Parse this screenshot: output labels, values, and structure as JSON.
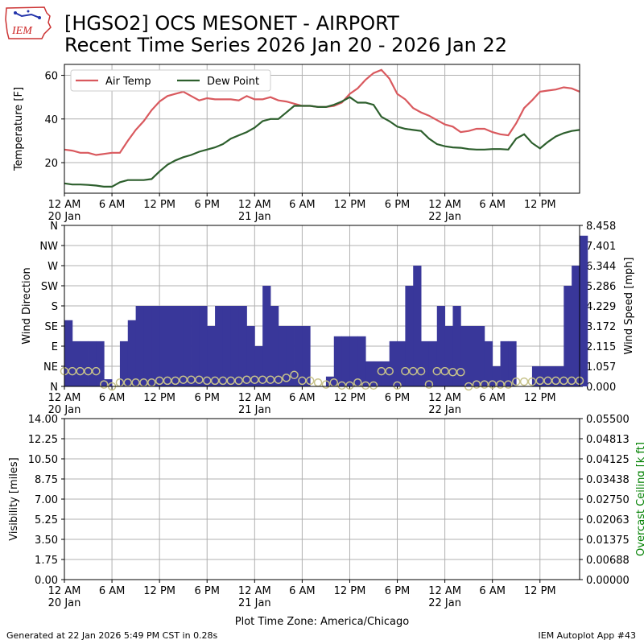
{
  "header": {
    "title_line1": "[HGSO2] OCS MESONET - AIRPORT",
    "title_line2": "Recent Time Series 2026 Jan 20 - 2026 Jan 22",
    "logo_text": "IEM"
  },
  "footer": {
    "left": "Generated at 22 Jan 2026 5:49 PM CST in 0.28s",
    "right": "IEM Autoplot App #43"
  },
  "colors": {
    "air_temp": "#d9595e",
    "dew_point": "#2d5f2d",
    "wind_bar": "#39379a",
    "wind_speed_marker": "#c7c28a",
    "ceiling_axis": "#008000",
    "grid": "#b0b0b0"
  },
  "chart_data": [
    {
      "type": "line",
      "ylabel": "Temperature [F]",
      "xlim": [
        0,
        65
      ],
      "ylim": [
        6,
        65
      ],
      "yticks": [
        20,
        40,
        60
      ],
      "xtick_hours": [
        0,
        6,
        12,
        18,
        24,
        30,
        36,
        42,
        48,
        54,
        60
      ],
      "xtick_labels": [
        "12 AM",
        "6 AM",
        "12 PM",
        "6 PM",
        "12 AM",
        "6 AM",
        "12 PM",
        "6 PM",
        "12 AM",
        "6 AM",
        "12 PM"
      ],
      "xtick_sublabels": {
        "0": "20 Jan",
        "24": "21 Jan",
        "48": "22 Jan"
      },
      "legend": "upper left",
      "series": [
        {
          "name": "Air Temp",
          "x": [
            0,
            1,
            2,
            3,
            4,
            5,
            6,
            7,
            8,
            9,
            10,
            11,
            12,
            13,
            14,
            15,
            16,
            17,
            18,
            19,
            20,
            21,
            22,
            23,
            24,
            25,
            26,
            27,
            28,
            29,
            30,
            31,
            32,
            33,
            34,
            35,
            36,
            37,
            38,
            39,
            40,
            41,
            42,
            43,
            44,
            45,
            46,
            47,
            48,
            49,
            50,
            51,
            52,
            53,
            54,
            55,
            56,
            57,
            58,
            59,
            60,
            61,
            62,
            63,
            64,
            65
          ],
          "y": [
            26,
            25.5,
            24.5,
            24.5,
            23.5,
            24,
            24.5,
            24.5,
            30,
            35,
            39,
            44,
            48,
            50.5,
            51.5,
            52.5,
            50.5,
            48.5,
            49.5,
            49,
            49,
            49,
            48.5,
            50.5,
            49,
            49,
            50,
            48.5,
            48,
            47,
            46,
            46,
            45.5,
            45.5,
            46,
            47.5,
            51.5,
            54,
            58,
            61,
            62.5,
            58.5,
            51.5,
            49,
            45,
            43,
            41.5,
            39.5,
            37.5,
            36.5,
            34,
            34.5,
            35.5,
            35.5,
            34,
            33,
            32.5,
            38,
            45,
            48.5,
            52.5,
            53,
            53.5,
            54.5,
            54,
            52.5
          ]
        },
        {
          "name": "Dew Point",
          "x": [
            0,
            1,
            2,
            3,
            4,
            5,
            6,
            7,
            8,
            9,
            10,
            11,
            12,
            13,
            14,
            15,
            16,
            17,
            18,
            19,
            20,
            21,
            22,
            23,
            24,
            25,
            26,
            27,
            28,
            29,
            30,
            31,
            32,
            33,
            34,
            35,
            36,
            37,
            38,
            39,
            40,
            41,
            42,
            43,
            44,
            45,
            46,
            47,
            48,
            49,
            50,
            51,
            52,
            53,
            54,
            55,
            56,
            57,
            58,
            59,
            60,
            61,
            62,
            63,
            64,
            65
          ],
          "y": [
            10.5,
            10,
            10,
            9.8,
            9.5,
            9,
            9,
            11,
            12,
            12,
            12,
            12.5,
            16,
            19,
            21,
            22.5,
            23.5,
            25,
            26,
            27,
            28.5,
            31,
            32.5,
            34,
            36,
            39,
            40,
            40,
            43,
            46,
            46,
            46,
            45.5,
            45.5,
            46.5,
            48,
            50,
            47.5,
            47.5,
            46.5,
            41,
            39,
            36.5,
            35.5,
            35,
            34.5,
            31,
            28.5,
            27.5,
            27,
            26.8,
            26.2,
            26,
            26,
            26.2,
            26.2,
            26,
            31,
            33,
            29,
            26.5,
            29.5,
            32,
            33.5,
            34.5,
            35
          ]
        }
      ]
    },
    {
      "type": "bar",
      "ylabel": "Wind Direction",
      "y2label": "Wind Speed [mph]",
      "xlim": [
        0,
        65
      ],
      "ylim": [
        0,
        360
      ],
      "yticks": [
        0,
        45,
        90,
        135,
        180,
        225,
        270,
        315,
        360
      ],
      "ytick_labels": [
        "N",
        "NE",
        "E",
        "SE",
        "S",
        "SW",
        "W",
        "NW",
        "N"
      ],
      "y2lim": [
        0,
        8.458
      ],
      "y2ticks": [
        "0.000",
        "1.057",
        "2.115",
        "3.172",
        "4.229",
        "5.286",
        "6.344",
        "7.401",
        "8.458"
      ],
      "xtick_hours": [
        0,
        6,
        12,
        18,
        24,
        30,
        36,
        42,
        48,
        54,
        60
      ],
      "xtick_labels": [
        "12 AM",
        "6 AM",
        "12 PM",
        "6 PM",
        "12 AM",
        "6 AM",
        "12 PM",
        "6 PM",
        "12 AM",
        "6 AM",
        "12 PM"
      ],
      "xtick_sublabels": {
        "0": "20 Jan",
        "24": "21 Jan",
        "48": "22 Jan"
      },
      "direction": [
        148,
        101,
        101,
        101,
        101,
        16,
        0,
        101,
        148,
        180,
        180,
        180,
        180,
        180,
        180,
        180,
        180,
        180,
        135,
        180,
        180,
        180,
        180,
        135,
        90,
        225,
        180,
        135,
        135,
        135,
        135,
        0,
        0,
        22,
        112,
        112,
        112,
        112,
        56,
        56,
        56,
        101,
        101,
        225,
        270,
        101,
        101,
        180,
        135,
        180,
        135,
        135,
        135,
        101,
        45,
        101,
        101,
        0,
        0,
        45,
        45,
        45,
        45,
        225,
        270,
        337,
        360,
        225,
        180,
        135,
        135,
        135,
        135
      ],
      "direction_x": [
        0.5,
        1,
        2,
        3,
        4,
        5,
        6,
        7,
        8,
        9,
        10,
        11,
        12,
        13,
        14,
        15,
        16,
        17,
        18,
        19,
        20,
        21,
        22,
        23,
        24,
        25,
        26,
        27,
        28,
        29,
        30,
        31,
        32,
        33,
        34,
        35,
        36,
        37,
        38,
        39,
        40,
        41,
        42,
        43,
        44,
        45,
        46,
        47,
        48,
        49,
        50,
        51,
        52,
        53,
        54,
        55,
        56,
        57,
        58,
        59,
        60,
        61,
        62,
        63,
        64,
        65,
        65,
        65,
        65,
        65,
        65,
        65,
        65
      ],
      "speed_x": [
        0,
        1,
        2,
        3,
        4,
        5,
        6,
        7,
        8,
        9,
        10,
        11,
        12,
        13,
        14,
        15,
        16,
        17,
        18,
        19,
        20,
        21,
        22,
        23,
        24,
        25,
        26,
        27,
        28,
        29,
        30,
        31,
        32,
        33,
        34,
        35,
        36,
        37,
        38,
        39,
        40,
        41,
        42,
        43,
        44,
        45,
        46,
        47,
        48,
        49,
        50,
        51,
        52,
        53,
        54,
        55,
        56,
        57,
        58,
        59,
        60,
        61,
        62,
        63,
        64,
        65
      ],
      "speed": [
        0.8,
        0.8,
        0.8,
        0.8,
        0.8,
        0.1,
        0,
        0.2,
        0.2,
        0.2,
        0.2,
        0.2,
        0.3,
        0.3,
        0.3,
        0.35,
        0.35,
        0.35,
        0.3,
        0.3,
        0.3,
        0.3,
        0.3,
        0.35,
        0.35,
        0.35,
        0.35,
        0.35,
        0.45,
        0.6,
        0.3,
        0.3,
        0.2,
        0.1,
        0.2,
        0.05,
        0.05,
        0.2,
        0.05,
        0.05,
        0.8,
        0.8,
        0.05,
        0.8,
        0.8,
        0.8,
        0.1,
        0.8,
        0.8,
        0.75,
        0.75,
        0,
        0.1,
        0.1,
        0.1,
        0.1,
        0.1,
        0.25,
        0.25,
        0.25,
        0.3,
        0.3,
        0.3,
        0.3,
        0.3,
        0.3
      ]
    },
    {
      "type": "line",
      "ylabel": "Visibility [miles]",
      "y2label": "Overcast Ceiling [k ft]",
      "xlim": [
        0,
        65
      ],
      "ylim": [
        0,
        14
      ],
      "yticks": [
        "0.00",
        "1.75",
        "3.50",
        "5.25",
        "7.00",
        "8.75",
        "10.50",
        "12.25",
        "14.00"
      ],
      "y2lim": [
        0,
        0.055
      ],
      "y2ticks": [
        "0.00000",
        "0.00688",
        "0.01375",
        "0.02063",
        "0.02750",
        "0.03438",
        "0.04125",
        "0.04813",
        "0.05500"
      ],
      "xtick_hours": [
        0,
        6,
        12,
        18,
        24,
        30,
        36,
        42,
        48,
        54,
        60
      ],
      "xtick_labels": [
        "12 AM",
        "6 AM",
        "12 PM",
        "6 PM",
        "12 AM",
        "6 AM",
        "12 PM",
        "6 PM",
        "12 AM",
        "6 AM",
        "12 PM"
      ],
      "xtick_sublabels": {
        "0": "20 Jan",
        "24": "21 Jan",
        "48": "22 Jan"
      },
      "xlabel": "Plot Time Zone: America/Chicago",
      "series": []
    }
  ]
}
